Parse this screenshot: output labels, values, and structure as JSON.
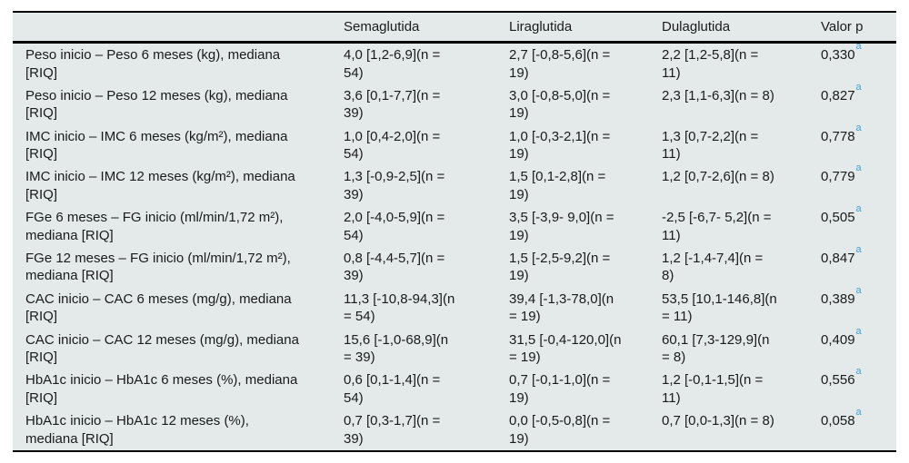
{
  "table": {
    "columns": [
      {
        "label": ""
      },
      {
        "label": "Semaglutida"
      },
      {
        "label": "Liraglutida"
      },
      {
        "label": "Dulaglutida"
      },
      {
        "label": "Valor p"
      }
    ],
    "footnote_marker": "a",
    "colors": {
      "row_background": "#e4e9e9",
      "rule_color": "#000000",
      "footnote_link_blue": "#45a2d8",
      "text": "#1b1b1b"
    },
    "rows": [
      {
        "label": "Peso inicio – Peso 6 meses (kg), mediana\n[RIQ]",
        "semaglutida": "4,0 [1,2-6,9](n =\n54)",
        "liraglutida": "2,7 [-0,8-5,6](n =\n19)",
        "dulaglutida": "2,2 [1,2-5,8](n =\n11)",
        "valor_p": "0,330"
      },
      {
        "label": "Peso inicio – Peso 12 meses (kg), mediana\n[RIQ]",
        "semaglutida": "3,6 [0,1-7,7](n =\n39)",
        "liraglutida": "3,0 [-0,8-5,0](n =\n19)",
        "dulaglutida": "2,3 [1,1-6,3](n = 8)",
        "valor_p": "0,827"
      },
      {
        "label": "IMC inicio – IMC 6 meses (kg/m²), mediana\n[RIQ]",
        "semaglutida": "1,0 [0,4-2,0](n =\n54)",
        "liraglutida": "1,0 [-0,3-2,1](n =\n19)",
        "dulaglutida": "1,3 [0,7-2,2](n =\n11)",
        "valor_p": "0,778"
      },
      {
        "label": "IMC inicio – IMC 12 meses (kg/m²), mediana\n[RIQ]",
        "semaglutida": "1,3 [-0,9-2,5](n =\n39)",
        "liraglutida": "1,5 [0,1-2,8](n =\n19)",
        "dulaglutida": "1,2 [0,7-2,6](n = 8)",
        "valor_p": "0,779"
      },
      {
        "label": "FGe 6 meses – FG inicio (ml/min/1,72 m²),\nmediana [RIQ]",
        "semaglutida": "2,0 [-4,0-5,9](n =\n54)",
        "liraglutida": "3,5 [-3,9- 9,0](n =\n19)",
        "dulaglutida": "-2,5 [-6,7- 5,2](n =\n11)",
        "valor_p": "0,505"
      },
      {
        "label": "FGe 12 meses – FG inicio (ml/min/1,72 m²),\nmediana [RIQ]",
        "semaglutida": "0,8 [-4,4-5,7](n =\n39)",
        "liraglutida": "1,5 [-2,5-9,2](n =\n19)",
        "dulaglutida": "1,2 [-1,4-7,4](n =\n8)",
        "valor_p": "0,847"
      },
      {
        "label": "CAC inicio – CAC 6 meses (mg/g), mediana\n[RIQ]",
        "semaglutida": "11,3 [-10,8-94,3](n\n= 54)",
        "liraglutida": "39,4 [-1,3-78,0](n\n= 19)",
        "dulaglutida": "53,5 [10,1-146,8](n\n= 11)",
        "valor_p": "0,389"
      },
      {
        "label": "CAC inicio – CAC 12 meses (mg/g), mediana\n[RIQ]",
        "semaglutida": "15,6 [-1,0-68,9](n\n= 39)",
        "liraglutida": "31,5 [-0,4-120,0](n\n= 19)",
        "dulaglutida": "60,1 [7,3-129,9](n\n= 8)",
        "valor_p": "0,409"
      },
      {
        "label": "HbA1c inicio – HbA1c 6 meses (%), mediana\n[RIQ]",
        "semaglutida": "0,6 [0,1-1,4](n =\n54)",
        "liraglutida": "0,7 [-0,1-1,0](n =\n19)",
        "dulaglutida": "1,2 [-0,1-1,5](n =\n11)",
        "valor_p": "0,556"
      },
      {
        "label": "HbA1c inicio – HbA1c 12 meses (%),\nmediana [RIQ]",
        "semaglutida": "0,7 [0,3-1,7](n =\n39)",
        "liraglutida": "0,0 [-0,5-0,8](n =\n19)",
        "dulaglutida": "0,7 [0,0-1,3](n = 8)",
        "valor_p": "0,058"
      }
    ]
  }
}
